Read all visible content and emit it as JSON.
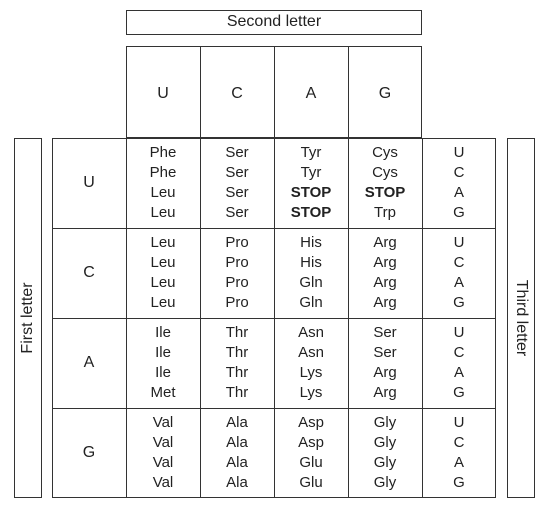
{
  "header": {
    "second_letter": "Second letter"
  },
  "side": {
    "first_letter": "First letter",
    "third_letter": "Third letter"
  },
  "second_letters": [
    "U",
    "C",
    "A",
    "G"
  ],
  "rows": [
    {
      "first": "U",
      "third": [
        "U",
        "C",
        "A",
        "G"
      ],
      "cols": [
        [
          "Phe",
          "Phe",
          "Leu",
          "Leu"
        ],
        [
          "Ser",
          "Ser",
          "Ser",
          "Ser"
        ],
        [
          "Tyr",
          "Tyr",
          "STOP",
          "STOP"
        ],
        [
          "Cys",
          "Cys",
          "STOP",
          "Trp"
        ]
      ]
    },
    {
      "first": "C",
      "third": [
        "U",
        "C",
        "A",
        "G"
      ],
      "cols": [
        [
          "Leu",
          "Leu",
          "Leu",
          "Leu"
        ],
        [
          "Pro",
          "Pro",
          "Pro",
          "Pro"
        ],
        [
          "His",
          "His",
          "Gln",
          "Gln"
        ],
        [
          "Arg",
          "Arg",
          "Arg",
          "Arg"
        ]
      ]
    },
    {
      "first": "A",
      "third": [
        "U",
        "C",
        "A",
        "G"
      ],
      "cols": [
        [
          "Ile",
          "Ile",
          "Ile",
          "Met"
        ],
        [
          "Thr",
          "Thr",
          "Thr",
          "Thr"
        ],
        [
          "Asn",
          "Asn",
          "Lys",
          "Lys"
        ],
        [
          "Ser",
          "Ser",
          "Arg",
          "Arg"
        ]
      ]
    },
    {
      "first": "G",
      "third": [
        "U",
        "C",
        "A",
        "G"
      ],
      "cols": [
        [
          "Val",
          "Val",
          "Val",
          "Val"
        ],
        [
          "Ala",
          "Ala",
          "Ala",
          "Ala"
        ],
        [
          "Asp",
          "Asp",
          "Glu",
          "Glu"
        ],
        [
          "Gly",
          "Gly",
          "Gly",
          "Gly"
        ]
      ]
    }
  ]
}
